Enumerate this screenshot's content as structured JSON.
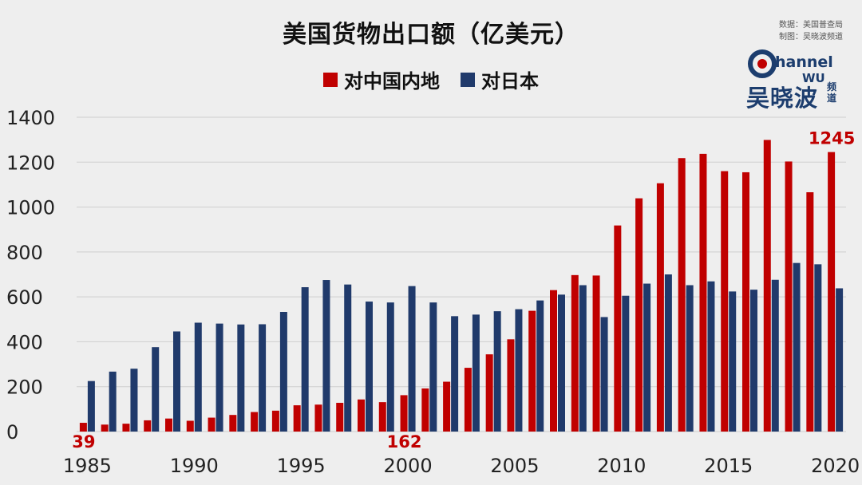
{
  "title": "美国货物出口额（亿美元）",
  "source": {
    "line1": "数据：美国普查局",
    "line2": "制图：吴晓波频道"
  },
  "logo": {
    "word_left": "C",
    "word_right": "hannel",
    "subtitle": "WU",
    "chinese": "吴晓波",
    "chinese_small": "频道"
  },
  "colors": {
    "china": "#c00000",
    "japan": "#203a6b",
    "grid": "#cfcfcf",
    "background": "#eeeeee"
  },
  "chart_data": {
    "type": "bar",
    "title": "美国货物出口额（亿美元）",
    "xlabel": "",
    "ylabel": "",
    "ylim": [
      0,
      1400
    ],
    "yticks": [
      0,
      200,
      400,
      600,
      800,
      1000,
      1200,
      1400
    ],
    "xtick_labels": [
      "1985",
      "1990",
      "1995",
      "2000",
      "2005",
      "2010",
      "2015",
      "2020"
    ],
    "grid": true,
    "legend": "top-center",
    "categories": [
      1985,
      1986,
      1987,
      1988,
      1989,
      1990,
      1991,
      1992,
      1993,
      1994,
      1995,
      1996,
      1997,
      1998,
      1999,
      2000,
      2001,
      2002,
      2003,
      2004,
      2005,
      2006,
      2007,
      2008,
      2009,
      2010,
      2011,
      2012,
      2013,
      2014,
      2015,
      2016,
      2017,
      2018,
      2019,
      2020
    ],
    "series": [
      {
        "name": "对中国内地",
        "values": [
          39,
          31,
          35,
          50,
          58,
          48,
          62,
          74,
          87,
          93,
          117,
          120,
          128,
          143,
          131,
          162,
          192,
          222,
          284,
          344,
          411,
          538,
          630,
          697,
          695,
          918,
          1039,
          1106,
          1218,
          1237,
          1160,
          1155,
          1299,
          1203,
          1066,
          1245
        ]
      },
      {
        "name": "对日本",
        "values": [
          225,
          267,
          280,
          376,
          446,
          485,
          481,
          477,
          478,
          533,
          643,
          675,
          655,
          579,
          575,
          648,
          575,
          514,
          521,
          536,
          545,
          584,
          610,
          652,
          510,
          605,
          659,
          700,
          652,
          669,
          624,
          632,
          676,
          751,
          745,
          638
        ]
      }
    ],
    "annotations": [
      {
        "year": 1985,
        "text": "39"
      },
      {
        "year": 2000,
        "text": "162"
      },
      {
        "year": 2020,
        "text": "1245"
      }
    ]
  }
}
